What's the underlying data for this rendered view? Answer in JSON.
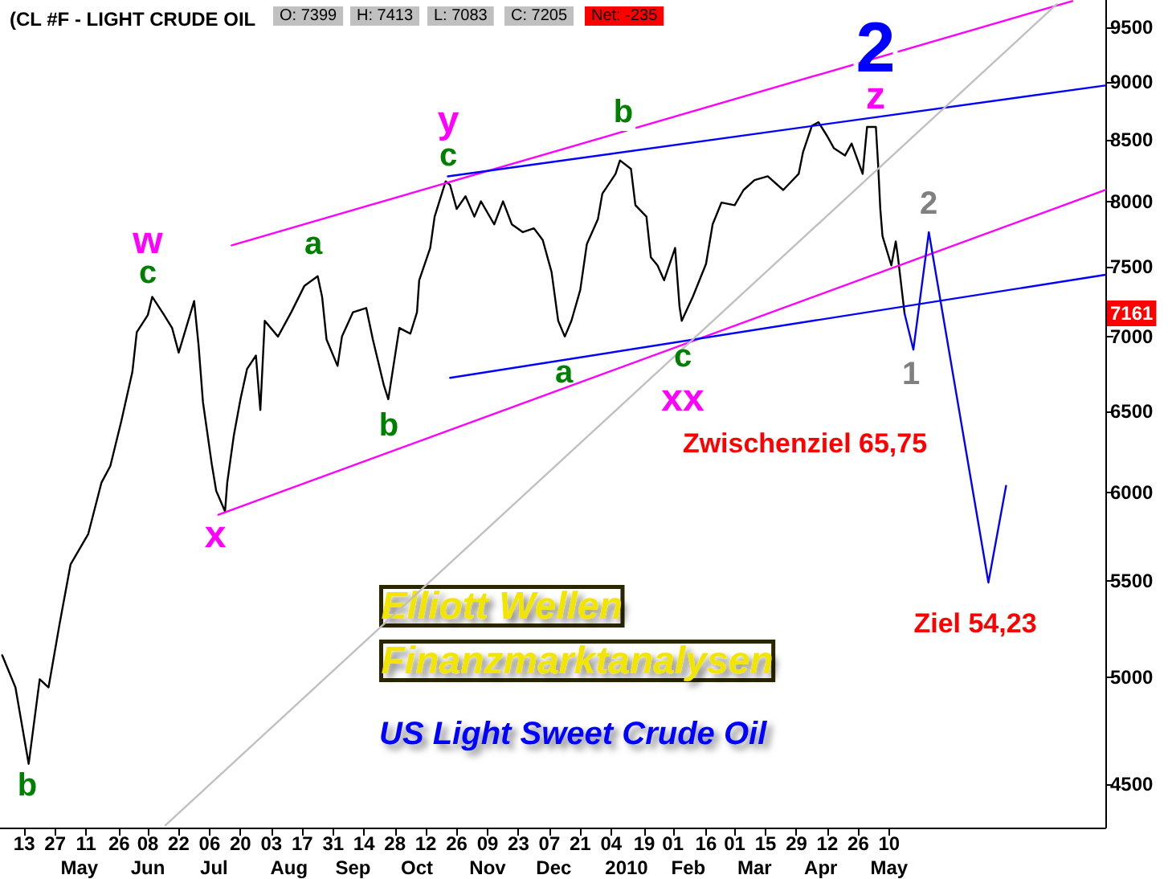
{
  "chart_data": {
    "type": "line",
    "title": "(CL #F - LIGHT CRUDE OIL",
    "annotations": [
      "O: 7399",
      "H: 7413",
      "L: 7083",
      "C: 7205",
      "Net: -235",
      "Elliott Wellen",
      "Finanzmarktanalysen",
      "US Light Sweet Crude Oil",
      "w",
      "c",
      "b",
      "x",
      "a",
      "b",
      "y",
      "c",
      "a",
      "b",
      "c",
      "xx",
      "2",
      "z",
      "2",
      "1",
      "Zwischenziel 65,75",
      "Ziel 54,23",
      "7161"
    ],
    "x": [
      "2009-04-03",
      "2009-04-09",
      "2009-04-15",
      "2009-04-20",
      "2009-04-24",
      "2009-04-29",
      "2009-05-04",
      "2009-05-12",
      "2009-05-18",
      "2009-05-22",
      "2009-05-27",
      "2009-06-01",
      "2009-06-03",
      "2009-06-08",
      "2009-06-10",
      "2009-06-15",
      "2009-06-19",
      "2009-06-22",
      "2009-06-29",
      "2009-07-01",
      "2009-07-03",
      "2009-07-07",
      "2009-07-09",
      "2009-07-13",
      "2009-07-14",
      "2009-07-17",
      "2009-07-20",
      "2009-07-23",
      "2009-07-27",
      "2009-07-29",
      "2009-07-31",
      "2009-08-06",
      "2009-08-12",
      "2009-08-18",
      "2009-08-24",
      "2009-08-26",
      "2009-08-28",
      "2009-09-02",
      "2009-09-04",
      "2009-09-09",
      "2009-09-15",
      "2009-09-18",
      "2009-09-23",
      "2009-09-25",
      "2009-09-30",
      "2009-10-05",
      "2009-10-08",
      "2009-10-09",
      "2009-10-14",
      "2009-10-16",
      "2009-10-21",
      "2009-10-23",
      "2009-10-26",
      "2009-10-30",
      "2009-11-03",
      "2009-11-06",
      "2009-11-12",
      "2009-11-16",
      "2009-11-20",
      "2009-11-25",
      "2009-11-30",
      "2009-12-04",
      "2009-12-08",
      "2009-12-11",
      "2009-12-14",
      "2009-12-17",
      "2009-12-21",
      "2009-12-24",
      "2009-12-29",
      "2009-12-31",
      "2010-01-06",
      "2010-01-08",
      "2010-01-13",
      "2010-01-15",
      "2010-01-20",
      "2010-01-22",
      "2010-01-25",
      "2010-01-28",
      "2010-02-02",
      "2010-02-04",
      "2010-02-05",
      "2010-02-10",
      "2010-02-16",
      "2010-02-19",
      "2010-02-23",
      "2010-03-01",
      "2010-03-05",
      "2010-03-10",
      "2010-03-16",
      "2010-03-23",
      "2010-03-30",
      "2010-04-01",
      "2010-04-05",
      "2010-04-08",
      "2010-04-12",
      "2010-04-15",
      "2010-04-20",
      "2010-04-23",
      "2010-04-28",
      "2010-04-30",
      "2010-05-04",
      "2010-05-05",
      "2010-05-06",
      "2010-05-07",
      "2010-05-11",
      "2010-05-13",
      "2010-05-14",
      "2010-05-17"
    ],
    "series": [
      {
        "color": "#000000",
        "values": [
          5110,
          4950,
          4590,
          4990,
          4950,
          5270,
          5590,
          5760,
          6060,
          6160,
          6440,
          6760,
          7030,
          7150,
          7280,
          7160,
          7060,
          6890,
          7250,
          6940,
          6560,
          6170,
          6010,
          5890,
          6060,
          6350,
          6580,
          6780,
          6870,
          6510,
          7110,
          7000,
          7170,
          7360,
          7430,
          7280,
          6980,
          6800,
          7000,
          7170,
          7200,
          6980,
          6670,
          6580,
          7060,
          7020,
          7170,
          7400,
          7640,
          7880,
          8160,
          8130,
          7940,
          8040,
          7880,
          8000,
          7820,
          8000,
          7820,
          7760,
          7790,
          7700,
          7460,
          7110,
          7000,
          7110,
          7330,
          7670,
          7860,
          8060,
          8220,
          8330,
          8260,
          7970,
          7880,
          7570,
          7510,
          7400,
          7640,
          7210,
          7110,
          7280,
          7520,
          7820,
          7990,
          7970,
          8090,
          8170,
          8200,
          8090,
          8220,
          8400,
          8620,
          8650,
          8530,
          8430,
          8370,
          8470,
          8220,
          8610,
          8610,
          8300,
          7940,
          7730,
          7510,
          7690,
          7570,
          7161
        ]
      },
      {
        "color": "#ff00ff",
        "x": [
          "2009-07-16",
          "2010-08-01"
        ],
        "values": [
          7660,
          9750
        ]
      },
      {
        "color": "#ff00ff",
        "x": [
          "2009-07-10",
          "2010-08-16"
        ],
        "values": [
          5870,
          8090
        ]
      },
      {
        "color": "#0000ff",
        "x": [
          "2009-10-22",
          "2010-08-16"
        ],
        "values": [
          8200,
          8970
        ]
      },
      {
        "color": "#0000ff",
        "x": [
          "2009-10-23",
          "2010-08-16"
        ],
        "values": [
          6720,
          7440
        ]
      },
      {
        "color": "#c0c0c0",
        "x": [
          "2009-06-16",
          "2010-07-25"
        ],
        "values": [
          4320,
          9720
        ]
      },
      {
        "color": "#0000ff",
        "x": [
          "2010-05-17",
          "2010-05-21",
          "2010-05-28",
          "2010-06-24",
          "2010-07-02"
        ],
        "values": [
          7161,
          6910,
          7760,
          5490,
          6040
        ]
      }
    ],
    "xlim": [
      "2009-04-02",
      "2010-08-16"
    ],
    "xticks": [
      {
        "value": "2009-04-13",
        "label": "13"
      },
      {
        "value": "2009-04-27",
        "label": "27"
      },
      {
        "value": "2009-05-11",
        "label": "11"
      },
      {
        "value": "2009-05-26",
        "label": "26"
      },
      {
        "value": "2009-06-08",
        "label": "08"
      },
      {
        "value": "2009-06-22",
        "label": "22"
      },
      {
        "value": "2009-07-06",
        "label": "06"
      },
      {
        "value": "2009-07-20",
        "label": "20"
      },
      {
        "value": "2009-08-03",
        "label": "03"
      },
      {
        "value": "2009-08-17",
        "label": "17"
      },
      {
        "value": "2009-08-31",
        "label": "31"
      },
      {
        "value": "2009-09-14",
        "label": "14"
      },
      {
        "value": "2009-09-28",
        "label": "28"
      },
      {
        "value": "2009-10-12",
        "label": "12"
      },
      {
        "value": "2009-10-26",
        "label": "26"
      },
      {
        "value": "2009-11-09",
        "label": "09"
      },
      {
        "value": "2009-11-23",
        "label": "23"
      },
      {
        "value": "2009-12-07",
        "label": "07"
      },
      {
        "value": "2009-12-21",
        "label": "21"
      },
      {
        "value": "2010-01-04",
        "label": "04"
      },
      {
        "value": "2010-01-19",
        "label": "19"
      },
      {
        "value": "2010-02-01",
        "label": "01"
      },
      {
        "value": "2010-02-16",
        "label": "16"
      },
      {
        "value": "2010-03-01",
        "label": "01"
      },
      {
        "value": "2010-03-15",
        "label": "15"
      },
      {
        "value": "2010-03-29",
        "label": "29"
      },
      {
        "value": "2010-04-12",
        "label": "12"
      },
      {
        "value": "2010-04-26",
        "label": "26"
      },
      {
        "value": "2010-05-10",
        "label": "10"
      }
    ],
    "x2lim": [
      "2009-04-02",
      "2010-08-16"
    ],
    "x2ticks": [
      {
        "value": "2009-05-08",
        "label": "May"
      },
      {
        "value": "2009-06-08",
        "label": "Jun"
      },
      {
        "value": "2009-07-08",
        "label": "Jul"
      },
      {
        "value": "2009-08-11",
        "label": "Aug"
      },
      {
        "value": "2009-09-09",
        "label": "Sep"
      },
      {
        "value": "2009-10-08",
        "label": "Oct"
      },
      {
        "value": "2009-11-09",
        "label": "Nov"
      },
      {
        "value": "2009-12-09",
        "label": "Dec"
      },
      {
        "value": "2010-01-11",
        "label": "2010"
      },
      {
        "value": "2010-02-08",
        "label": "Feb"
      },
      {
        "value": "2010-03-10",
        "label": "Mar"
      },
      {
        "value": "2010-04-09",
        "label": "Apr"
      },
      {
        "value": "2010-05-10",
        "label": "May"
      }
    ],
    "ylim": [
      4310,
      9760
    ],
    "yticks": [
      4500,
      5000,
      5500,
      6000,
      6500,
      7000,
      7500,
      8000,
      8500,
      9000,
      9500
    ],
    "log": "y",
    "grid": false,
    "marker": "none",
    "line_style": "solid"
  }
}
